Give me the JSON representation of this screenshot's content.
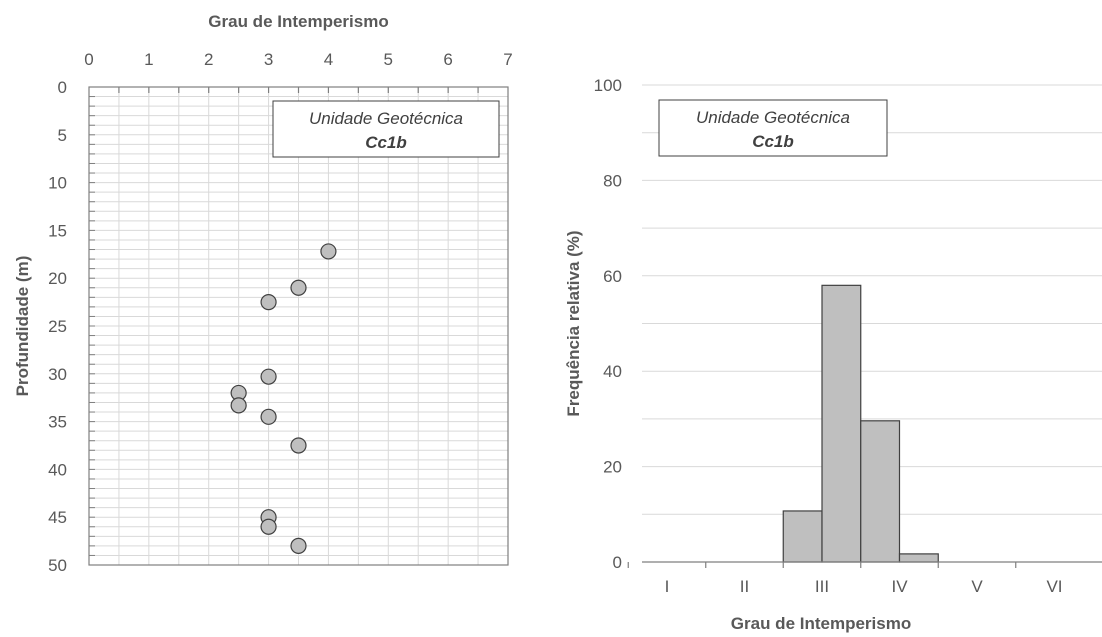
{
  "chart_data": [
    {
      "type": "scatter",
      "xlabel": "Grau de Intemperismo",
      "ylabel": "Profundidade (m)",
      "xlim": [
        0,
        7
      ],
      "ylim": [
        0,
        50
      ],
      "y_inverted": true,
      "x_axis_position": "top",
      "xticks": [
        "0",
        "1",
        "2",
        "3",
        "4",
        "5",
        "6",
        "7"
      ],
      "yticks": [
        "0",
        "5",
        "10",
        "15",
        "20",
        "25",
        "30",
        "35",
        "40",
        "45",
        "50"
      ],
      "grid": true,
      "legend": {
        "line1": "Unidade Geotécnica",
        "line2": "Cc1b",
        "placement": "top-right"
      },
      "marker_color": "#bfbfbf",
      "points": [
        {
          "x": 4.0,
          "y": 17.2
        },
        {
          "x": 3.5,
          "y": 21.0
        },
        {
          "x": 3.0,
          "y": 22.5
        },
        {
          "x": 3.0,
          "y": 30.3
        },
        {
          "x": 2.5,
          "y": 32.0
        },
        {
          "x": 2.5,
          "y": 33.3
        },
        {
          "x": 3.0,
          "y": 34.5
        },
        {
          "x": 3.5,
          "y": 37.5
        },
        {
          "x": 3.0,
          "y": 45.0
        },
        {
          "x": 3.0,
          "y": 46.0
        },
        {
          "x": 3.5,
          "y": 48.0
        }
      ]
    },
    {
      "type": "bar",
      "xlabel": "Grau de Intemperismo",
      "ylabel": "Frequência relativa (%)",
      "categories": [
        "I",
        "II",
        "III",
        "IV",
        "V",
        "VI"
      ],
      "bins": [
        {
          "from": 2.5,
          "to": 3.0,
          "value": 10.7
        },
        {
          "from": 3.0,
          "to": 3.5,
          "value": 58.0
        },
        {
          "from": 3.5,
          "to": 4.0,
          "value": 29.6
        },
        {
          "from": 4.0,
          "to": 4.5,
          "value": 1.7
        }
      ],
      "ylim": [
        0,
        100
      ],
      "yticks": [
        "0",
        "20",
        "40",
        "60",
        "80",
        "100"
      ],
      "grid": true,
      "legend": {
        "line1": "Unidade Geotécnica",
        "line2": "Cc1b",
        "placement": "top-left"
      },
      "bar_color": "#bfbfbf"
    }
  ]
}
